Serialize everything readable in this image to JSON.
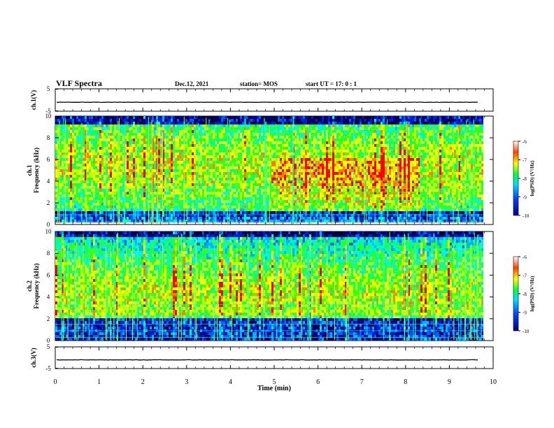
{
  "header": {
    "title": "VLF Spectra",
    "date": "Dec.12, 2021",
    "station": "station= MOS",
    "start": "start  UT =   17: 0  : 1"
  },
  "chart_data": [
    {
      "type": "line",
      "panel": "ch1-waveform",
      "ylabel": "ch.1(V)",
      "yticks": [
        "5",
        "-5"
      ],
      "ylim": [
        -5,
        5
      ],
      "values_note": "flat trace near -1 V"
    },
    {
      "type": "heatmap",
      "panel": "ch1-spectrogram",
      "ylabel_1": "ch.1",
      "ylabel_2": "Frequency (kHz)",
      "yticks": [
        "0",
        "2",
        "4",
        "6",
        "8",
        "10"
      ],
      "ylim": [
        0,
        10
      ],
      "colorbar": {
        "label": "log(PSD) (V²/Hz)",
        "ticks": [
          "-6",
          "-7",
          "-8",
          "-9",
          "-10"
        ],
        "range": [
          -10,
          -6
        ]
      }
    },
    {
      "type": "heatmap",
      "panel": "ch2-spectrogram",
      "ylabel_1": "ch.2",
      "ylabel_2": "Frequency (kHz)",
      "yticks": [
        "0",
        "2",
        "4",
        "6",
        "8",
        "10"
      ],
      "ylim": [
        0,
        10
      ],
      "colorbar": {
        "label": "log(PSD) (V²/Hz)",
        "ticks": [
          "-6",
          "-7",
          "-8",
          "-9",
          "-10"
        ],
        "range": [
          -10,
          -6
        ]
      }
    },
    {
      "type": "line",
      "panel": "ch3-waveform",
      "ylabel": "ch.3(V)",
      "yticks": [
        "5",
        "-5"
      ],
      "ylim": [
        -5,
        5
      ],
      "values_note": "flat trace near -1 V"
    }
  ],
  "xaxis": {
    "label": "Time (min)",
    "ticks": [
      "0",
      "1",
      "2",
      "3",
      "4",
      "5",
      "6",
      "7",
      "8",
      "9",
      "10"
    ],
    "xlim": [
      0,
      10
    ]
  }
}
